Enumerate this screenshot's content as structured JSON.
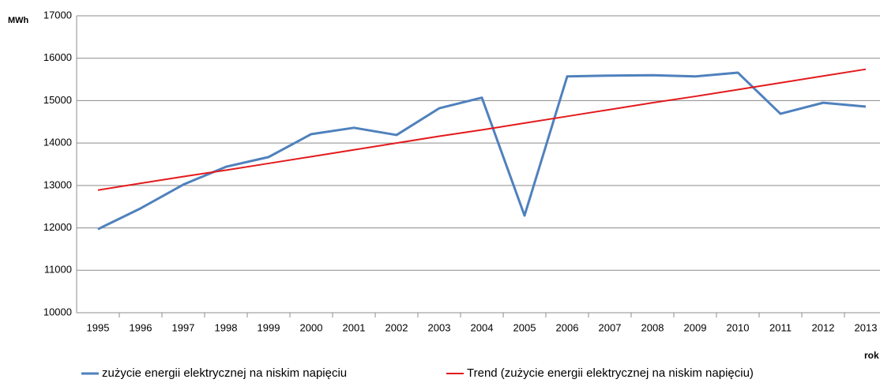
{
  "chart_data": {
    "type": "line",
    "y_label": "MWh",
    "x_label": "rok",
    "categories": [
      "1995",
      "1996",
      "1997",
      "1998",
      "1999",
      "2000",
      "2001",
      "2002",
      "2003",
      "2004",
      "2005",
      "2006",
      "2007",
      "2008",
      "2009",
      "2010",
      "2011",
      "2012",
      "2013"
    ],
    "series": [
      {
        "name": "zużycie energii elektrycznej na niskim napięciu",
        "color": "#4f81bd",
        "values": [
          11970,
          12460,
          13020,
          13440,
          13670,
          14210,
          14360,
          14190,
          14820,
          15070,
          12290,
          15570,
          15590,
          15600,
          15570,
          15660,
          14690,
          14950,
          14860
        ]
      },
      {
        "name": "Trend (zużycie energii elektrycznej na niskim napięciu)",
        "color": "#e31a1c",
        "values": [
          12890,
          13050,
          13210,
          13360,
          13520,
          13680,
          13840,
          14000,
          14160,
          14310,
          14470,
          14630,
          14790,
          14950,
          15100,
          15260,
          15420,
          15580,
          15740
        ]
      }
    ],
    "ylim": [
      10000,
      17000
    ],
    "yticks": [
      10000,
      11000,
      12000,
      13000,
      14000,
      15000,
      16000,
      17000
    ],
    "grid": true,
    "legend": "bottom"
  }
}
